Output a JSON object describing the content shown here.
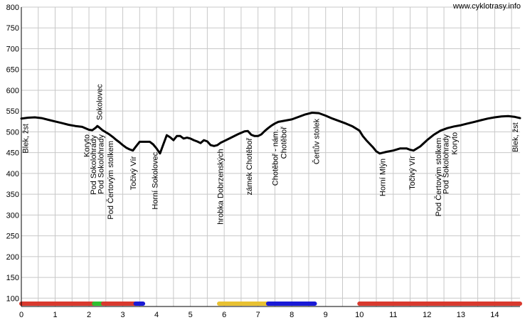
{
  "watermark": "www.cyklotrasy.info",
  "chart_data": {
    "type": "line",
    "title": "",
    "xlabel": "",
    "ylabel": "",
    "xlim": [
      0,
      14.75
    ],
    "ylim": [
      80,
      800
    ],
    "grid": true,
    "x_ticks": [
      0,
      1,
      2,
      3,
      4,
      5,
      6,
      7,
      8,
      9,
      10,
      11,
      12,
      13,
      14
    ],
    "y_ticks": [
      100,
      150,
      200,
      250,
      300,
      350,
      400,
      450,
      500,
      550,
      600,
      650,
      700,
      750,
      800
    ],
    "line_color": "#000000",
    "series": [
      {
        "x": [
          0,
          0.2,
          0.4,
          0.6,
          0.8,
          1.0,
          1.2,
          1.4,
          1.6,
          1.8,
          2.0,
          2.1,
          2.2,
          2.25,
          2.3,
          2.4,
          2.5,
          2.6,
          2.7,
          2.8,
          2.9,
          3.0,
          3.1,
          3.2,
          3.3,
          3.4,
          3.5,
          3.6,
          3.7,
          3.8,
          3.9,
          4.0,
          4.1,
          4.2,
          4.3,
          4.4,
          4.5,
          4.6,
          4.7,
          4.8,
          4.9,
          5.0,
          5.1,
          5.2,
          5.3,
          5.4,
          5.5,
          5.6,
          5.7,
          5.8,
          5.9,
          6.0,
          6.2,
          6.4,
          6.6,
          6.7,
          6.8,
          6.9,
          7.0,
          7.1,
          7.2,
          7.3,
          7.4,
          7.5,
          7.6,
          7.8,
          8.0,
          8.2,
          8.4,
          8.6,
          8.8,
          9.0,
          9.2,
          9.4,
          9.6,
          9.8,
          10.0,
          10.1,
          10.2,
          10.4,
          10.5,
          10.6,
          10.7,
          10.8,
          11.0,
          11.2,
          11.4,
          11.5,
          11.6,
          11.8,
          12.0,
          12.2,
          12.4,
          12.6,
          12.8,
          13.0,
          13.2,
          13.4,
          13.6,
          13.8,
          14.0,
          14.2,
          14.4,
          14.6,
          14.75
        ],
        "y": [
          532,
          534,
          535,
          533,
          529,
          525,
          521,
          517,
          514,
          512,
          505,
          504,
          510,
          514,
          511,
          504,
          499,
          494,
          488,
          481,
          475,
          468,
          462,
          458,
          455,
          466,
          476,
          476,
          476,
          476,
          470,
          460,
          448,
          470,
          492,
          487,
          480,
          490,
          490,
          484,
          486,
          484,
          480,
          477,
          473,
          480,
          477,
          468,
          466,
          468,
          474,
          478,
          486,
          494,
          501,
          502,
          493,
          490,
          490,
          494,
          502,
          509,
          515,
          520,
          524,
          527,
          530,
          536,
          542,
          546,
          545,
          539,
          532,
          526,
          520,
          513,
          503,
          490,
          480,
          463,
          453,
          448,
          450,
          452,
          455,
          460,
          460,
          457,
          455,
          465,
          480,
          493,
          503,
          509,
          513,
          516,
          520,
          524,
          528,
          532,
          535,
          537,
          538,
          536,
          533
        ]
      }
    ],
    "annotations": [
      {
        "x": 0.12,
        "label": "Blek, žst"
      },
      {
        "x": 1.93,
        "label": "Koryto"
      },
      {
        "x": 2.13,
        "label": "Pod Sokolohrady"
      },
      {
        "x": 2.35,
        "label": "Pod Sokolohrady"
      },
      {
        "x": 2.3,
        "label": "Sokolovec"
      },
      {
        "x": 2.63,
        "label": "Pod Čertovým stolkem"
      },
      {
        "x": 3.3,
        "label": "Točivý Vír"
      },
      {
        "x": 3.95,
        "label": "Horní Sokolovec"
      },
      {
        "x": 5.88,
        "label": "hrobka Dobrzenských"
      },
      {
        "x": 6.73,
        "label": "zámek Chotěboř"
      },
      {
        "x": 7.5,
        "label": "Chotěboř - nám."
      },
      {
        "x": 7.75,
        "label": "Chotěboř"
      },
      {
        "x": 8.72,
        "label": "Čertův stolek"
      },
      {
        "x": 10.68,
        "label": "Horní Mlýn"
      },
      {
        "x": 11.55,
        "label": "Točivý Vír"
      },
      {
        "x": 12.33,
        "label": "Pod Čertovým stolkem"
      },
      {
        "x": 12.55,
        "label": "Pod Sokolohrady"
      },
      {
        "x": 12.8,
        "label": "Koryto"
      },
      {
        "x": 14.6,
        "label": "Blek, žst"
      }
    ],
    "segments": [
      {
        "x0": 0,
        "x1": 2.15,
        "color": "#d9392e"
      },
      {
        "x0": 2.15,
        "x1": 2.42,
        "color": "#2fbf2f"
      },
      {
        "x0": 2.42,
        "x1": 3.38,
        "color": "#d9392e"
      },
      {
        "x0": 3.38,
        "x1": 3.6,
        "color": "#1a1ad6"
      },
      {
        "x0": 5.85,
        "x1": 7.3,
        "color": "#e8c132"
      },
      {
        "x0": 7.3,
        "x1": 8.68,
        "color": "#1a1ad6"
      },
      {
        "x0": 10.0,
        "x1": 14.75,
        "color": "#d9392e"
      }
    ]
  }
}
